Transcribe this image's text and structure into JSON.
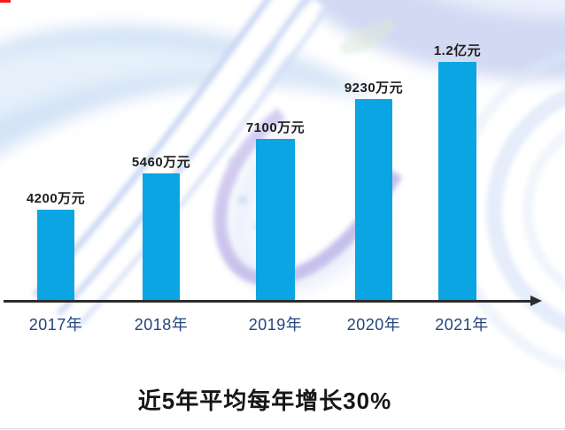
{
  "chart_data": {
    "type": "bar",
    "title": "近5年平均每年增长30%",
    "categories": [
      "2017年",
      "2018年",
      "2019年",
      "2020年",
      "2021年"
    ],
    "values": [
      4200,
      5460,
      7100,
      9230,
      12000
    ],
    "unit": "万元",
    "value_labels": [
      "4200万元",
      "5460万元",
      "7100万元",
      "9230万元",
      "1.2亿元"
    ],
    "xlabel": "",
    "ylabel": "",
    "legend_position": "none",
    "grid": false,
    "bar_color": "#0aa5e2",
    "axis_color": "#2c2c2c",
    "category_label_color": "#24457e",
    "value_label_color": "#1e1e1e",
    "title_color": "#161616"
  }
}
